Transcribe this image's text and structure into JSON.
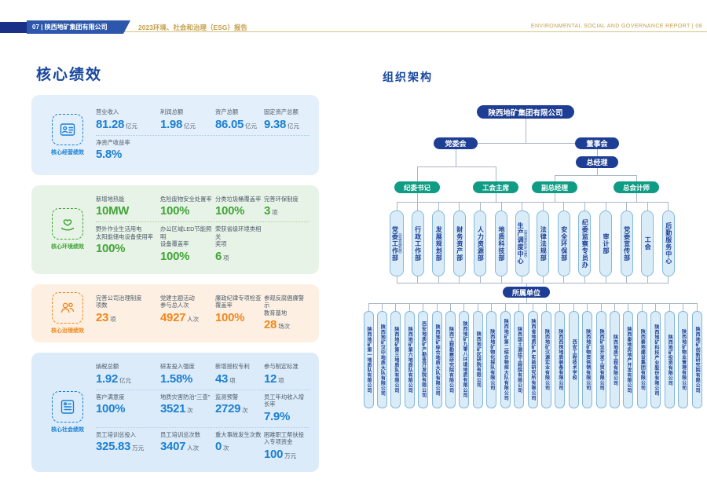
{
  "header": {
    "left_banner": "07 | 陕西地矿集团有限公司",
    "cn_title": "2023环境、社会和治理（ESG）报告",
    "right_banner": "ENVIRONMENTAL SOCIAL AND GOVERNANCE REPORT | 08",
    "gold_color": "#c4a04b",
    "navy_color": "#1d3e94"
  },
  "performance": {
    "title": "核心绩效",
    "cards": [
      {
        "key": "operating",
        "label": "核心经营绩效",
        "theme": "blue",
        "accent_color": "#1b80d2",
        "icon": "id-card-icon",
        "rows": [
          [
            {
              "label": "营业收入",
              "value": "81.28",
              "unit": "亿元"
            },
            {
              "label": "利润总额",
              "value": "1.98",
              "unit": "亿元"
            },
            {
              "label": "资产总额",
              "value": "86.05",
              "unit": "亿元"
            },
            {
              "label": "固定资产总额",
              "value": "9.38",
              "unit": "亿元"
            }
          ],
          [
            {
              "label": "净资产收益率",
              "value": "5.8%",
              "unit": ""
            }
          ]
        ]
      },
      {
        "key": "environment",
        "label": "核心环境绩效",
        "theme": "green",
        "accent_color": "#41a538",
        "icon": "hand-heart-icon",
        "rows": [
          [
            {
              "label": "新增地热能",
              "value": "10MW",
              "unit": ""
            },
            {
              "label": "危险废物安全处置率",
              "value": "100%",
              "unit": ""
            },
            {
              "label": "分类垃圾桶覆盖率",
              "value": "100%",
              "unit": ""
            },
            {
              "label": "完善环保制度",
              "value": "3",
              "unit": "项"
            }
          ],
          [
            {
              "label": "野外作业生活用电\n太阳能储电设备使用率",
              "value": "100%",
              "unit": ""
            },
            {
              "label": "办公区域LED节能照明\n设备覆盖率",
              "value": "100%",
              "unit": ""
            },
            {
              "label": "荣获省级环境类相关\n奖项",
              "value": "6",
              "unit": "项"
            }
          ]
        ]
      },
      {
        "key": "governance",
        "label": "核心治理绩效",
        "theme": "orange",
        "accent_color": "#f0871c",
        "icon": "people-icon",
        "rows": [
          [
            {
              "label": "完善公司治理制度\n项数",
              "value": "23",
              "unit": "项"
            },
            {
              "label": "党建主题活动\n参与总人次",
              "value": "4927",
              "unit": "人次"
            },
            {
              "label": "廉政纪律专项检查\n覆盖率",
              "value": "100%",
              "unit": ""
            },
            {
              "label": "参观反腐倡廉警示\n教育基地",
              "value": "28",
              "unit": "场次"
            }
          ]
        ]
      },
      {
        "key": "social",
        "label": "核心社会绩效",
        "theme": "blue2",
        "accent_color": "#1b80d2",
        "icon": "certificate-icon",
        "rows": [
          [
            {
              "label": "纳税总额",
              "value": "1.92",
              "unit": "亿元"
            },
            {
              "label": "研发投入强度",
              "value": "1.58%",
              "unit": ""
            },
            {
              "label": "新增授权专利",
              "value": "43",
              "unit": "项"
            },
            {
              "label": "参与制定标准",
              "value": "12",
              "unit": "项"
            }
          ],
          [
            {
              "label": "客户满意度",
              "value": "100%",
              "unit": ""
            },
            {
              "label": "地质灾害防治“三查”",
              "value": "3521",
              "unit": "次"
            },
            {
              "label": "监测预警",
              "value": "2729",
              "unit": "次"
            },
            {
              "label": "员工年均收入增长率",
              "value": "7.9%",
              "unit": ""
            }
          ],
          [
            {
              "label": "员工培训总投入",
              "value": "325.83",
              "unit": "万元"
            },
            {
              "label": "员工培训总次数",
              "value": "3407",
              "unit": "人次"
            },
            {
              "label": "重大事故发生次数",
              "value": "0",
              "unit": "次"
            },
            {
              "label": "困难职工帮扶投入专项资金",
              "value": "100",
              "unit": "万元"
            }
          ]
        ]
      }
    ]
  },
  "org": {
    "title": "组织架构",
    "root": "陕西地矿集团有限公司",
    "party_committee": "党委会",
    "board": "董事会",
    "general_manager": "总经理",
    "executives": [
      "纪委书记",
      "工会主席",
      "副总经理",
      "总会计师"
    ],
    "departments": [
      {
        "name": "党委工作部",
        "sub": "（党委组织部）"
      },
      {
        "name": "行政工作部"
      },
      {
        "name": "发展规划部"
      },
      {
        "name": "财务资产部"
      },
      {
        "name": "人力资源部"
      },
      {
        "name": "地质科技部"
      },
      {
        "name": "生产调度中心",
        "sub": "（突击总队办公室）"
      },
      {
        "name": "法律法规部"
      },
      {
        "name": "安全环保部"
      },
      {
        "name": "纪委监察专员办"
      },
      {
        "name": "审计部"
      },
      {
        "name": "党委宣传部"
      },
      {
        "name": "工会"
      },
      {
        "name": "后勤服务中心"
      }
    ],
    "subsidiaries_label": "所属单位",
    "subsidiaries": [
      "陕西地矿第一地质队有限公司",
      "陕西地矿汉中地质大队有限公司",
      "陕西地矿第三地质队有限公司",
      "陕西地矿第六地质队有限公司",
      "西安地质矿产勘查开发院有限公司",
      "陕西地矿综合地质大队有限公司",
      "陕西工程勘察研究院有限公司",
      "陕西地矿九零八环境地质有限公司",
      "陕西地矿区研院有限公司",
      "陕西地矿物化探队有限公司",
      "陕西地矿第二综合物探大队有限公司",
      "陕西国土测绘工程院有限公司",
      "陕西省地质矿产实验研究所有限公司",
      "陕西地矿汉源实业有限公司",
      "陕西西探地质装备有限公司",
      "西安工程技术学校",
      "陕西地矿物资供销有限公司",
      "陕西矿业开发工贸有限公司",
      "陕西地质工程有限公司",
      "陕西秦地房地产开发有限公司",
      "陕西秦地建设集团有限公司",
      "陕西地矿科技产业股份有限公司",
      "陕西地矿投资有限公司",
      "陕西地矿物业管理有限公司",
      "陕西地矿创新研究院有限公司"
    ],
    "node_navy": "#1d3e94",
    "node_teal": "#0f9b84",
    "box_fill": "#d9ecf8",
    "line_color": "#a8b6c6"
  }
}
